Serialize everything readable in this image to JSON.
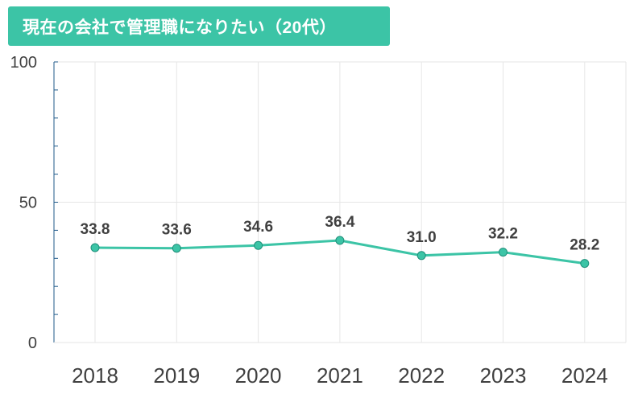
{
  "title": "現在の会社で管理職になりたい（20代）",
  "colors": {
    "accent": "#3cc4a6",
    "line": "#3cc4a6",
    "marker_fill": "#3cc4a6",
    "marker_stroke": "#1f8f7a",
    "grid": "#e6e6e6",
    "axis": "#1f5a8a",
    "tick_text": "#404040",
    "label_text": "#404040"
  },
  "chart_data": {
    "type": "line",
    "title": "現在の会社で管理職になりたい（20代）",
    "categories": [
      "2018",
      "2019",
      "2020",
      "2021",
      "2022",
      "2023",
      "2024"
    ],
    "series": [
      {
        "values": [
          33.8,
          33.6,
          34.6,
          36.4,
          31.0,
          32.2,
          28.2
        ]
      }
    ],
    "data_labels": [
      "33.8",
      "33.6",
      "34.6",
      "36.4",
      "31.0",
      "32.2",
      "28.2"
    ],
    "ylim": [
      0,
      100
    ],
    "yticks": [
      0,
      50,
      100
    ],
    "ytick_labels": [
      "0",
      "50",
      "100"
    ],
    "minor_ytick_step": 10,
    "grid": {
      "horizontal": true,
      "vertical": true
    },
    "legend": "none"
  }
}
